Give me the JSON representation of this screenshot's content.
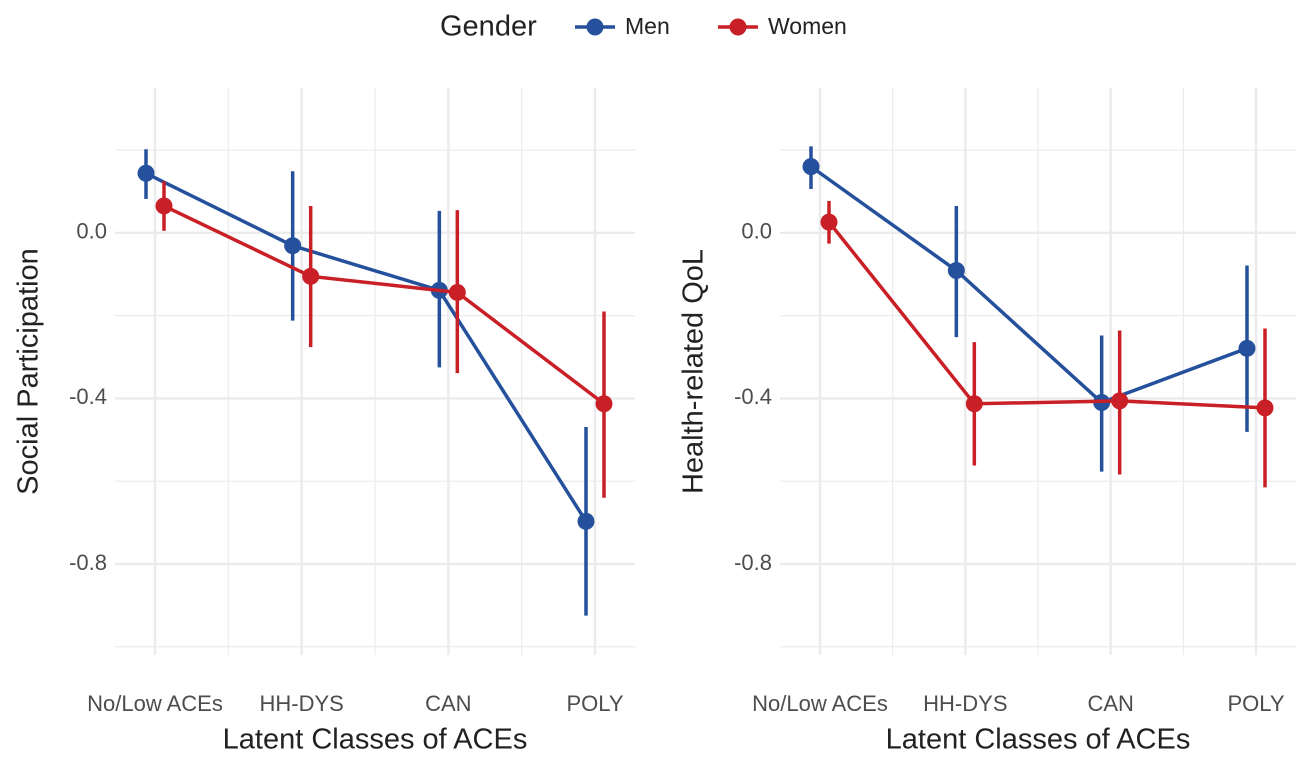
{
  "legend": {
    "title": "Gender"
  },
  "chart_data": [
    {
      "type": "line",
      "x_label": "Latent Classes of ACEs",
      "y_label": "Social Participation",
      "categories": [
        "No/Low ACEs",
        "HH-DYS",
        "CAN",
        "POLY"
      ],
      "ylim": [
        -1.02,
        0.35
      ],
      "yticks": [
        {
          "value": 0,
          "label": "0.0"
        },
        -0.4,
        -0.8
      ],
      "minor_yticks": [
        0.2,
        -0.2,
        -0.6,
        -1.0
      ],
      "grid": true,
      "series": [
        {
          "name": "Men",
          "color": "#24509c",
          "values": [
            0.144,
            -0.031,
            -0.139,
            -0.697
          ],
          "lower": [
            0.082,
            -0.212,
            -0.325,
            -0.925
          ],
          "upper": [
            0.202,
            0.149,
            0.053,
            -0.469
          ]
        },
        {
          "name": "Women",
          "color": "#c91f26",
          "values": [
            0.065,
            -0.105,
            -0.144,
            -0.413
          ],
          "lower": [
            0.005,
            -0.276,
            -0.339,
            -0.64
          ],
          "upper": [
            0.125,
            0.065,
            0.055,
            -0.19
          ]
        }
      ]
    },
    {
      "type": "line",
      "x_label": "Latent Classes of ACEs",
      "y_label": "Health-related QoL",
      "categories": [
        "No/Low ACEs",
        "HH-DYS",
        "CAN",
        "POLY"
      ],
      "ylim": [
        -1.02,
        0.35
      ],
      "yticks": [
        {
          "value": 0,
          "label": "0.0"
        },
        -0.4,
        -0.8
      ],
      "minor_yticks": [
        0.2,
        -0.2,
        -0.6,
        -1.0
      ],
      "grid": true,
      "series": [
        {
          "name": "Men",
          "color": "#24509c",
          "values": [
            0.16,
            -0.091,
            -0.41,
            -0.279
          ],
          "lower": [
            0.106,
            -0.252,
            -0.577,
            -0.481
          ],
          "upper": [
            0.209,
            0.065,
            -0.248,
            -0.079
          ]
        },
        {
          "name": "Women",
          "color": "#c91f26",
          "values": [
            0.026,
            -0.413,
            -0.406,
            -0.423
          ],
          "lower": [
            -0.026,
            -0.562,
            -0.584,
            -0.615
          ],
          "upper": [
            0.077,
            -0.264,
            -0.236,
            -0.231
          ]
        }
      ]
    }
  ]
}
